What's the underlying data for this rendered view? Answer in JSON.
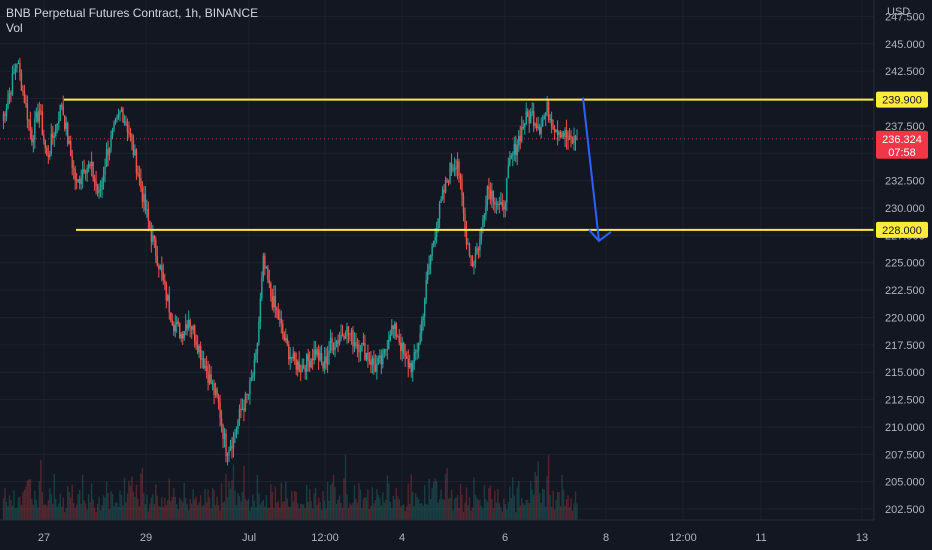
{
  "header": {
    "title": "BNB Perpetual Futures Contract, 1h, BINANCE",
    "subtitle": "Vol"
  },
  "axis": {
    "currency": "USD"
  },
  "levels": [
    {
      "value": 239.9,
      "label": "239.900"
    },
    {
      "value": 228.0,
      "label": "228.000"
    }
  ],
  "current_price": {
    "value": 236.324,
    "label": "236.324",
    "countdown": "07:58"
  },
  "colors": {
    "background": "#131722",
    "up": "#26a69a",
    "down": "#ef5350",
    "level_line": "#ffeb3b",
    "arrow": "#2962ff",
    "price_tag": "#f23645"
  },
  "chart_data": {
    "type": "candlestick",
    "title": "BNB Perpetual Futures Contract, 1h, BINANCE",
    "ylabel": "USD",
    "ylim": [
      201.5,
      249.0
    ],
    "y_ticks": [
      "202.500",
      "205.000",
      "207.500",
      "210.000",
      "212.500",
      "215.000",
      "217.500",
      "220.000",
      "222.500",
      "225.000",
      "227.500",
      "230.000",
      "232.500",
      "235.000",
      "237.500",
      "240.000",
      "242.500",
      "245.000",
      "247.500"
    ],
    "x_ticks": [
      "27",
      "29",
      "Jul",
      "12:00",
      "4",
      "6",
      "8",
      "12:00",
      "11",
      "13"
    ],
    "horizontal_levels": [
      239.9,
      228.0
    ],
    "projection_arrow": {
      "from": 239.9,
      "to": 227.0
    },
    "series": [
      {
        "name": "price_path",
        "values": [
          238.0,
          240.5,
          243.5,
          240.0,
          236.5,
          239.0,
          234.5,
          237.0,
          239.5,
          235.5,
          232.0,
          234.0,
          233.5,
          231.0,
          235.0,
          237.0,
          239.0,
          237.0,
          234.0,
          230.5,
          227.5,
          225.0,
          222.0,
          219.5,
          218.5,
          220.0,
          218.0,
          216.0,
          214.0,
          212.0,
          208.0,
          209.0,
          211.5,
          213.0,
          216.0,
          225.0,
          222.0,
          220.0,
          217.5,
          216.0,
          215.5,
          216.0,
          217.0,
          215.5,
          217.5,
          218.0,
          219.0,
          218.0,
          217.5,
          216.5,
          215.5,
          216.0,
          219.0,
          218.5,
          216.0,
          215.5,
          218.5,
          224.0,
          228.0,
          231.0,
          233.5,
          234.5,
          228.0,
          225.0,
          227.0,
          232.0,
          231.0,
          229.5,
          234.0,
          236.0,
          238.0,
          238.5,
          237.5,
          239.0,
          237.5,
          237.0,
          236.0,
          236.324
        ]
      }
    ],
    "volume_levels": [
      0.5,
      0.3,
      0.7,
      0.4,
      0.2,
      0.6,
      0.5,
      0.3,
      0.4,
      0.3,
      0.2,
      0.5,
      0.4,
      0.3,
      0.6,
      0.4,
      0.5,
      0.7,
      0.6,
      0.8,
      0.4,
      0.3,
      0.5,
      0.4,
      0.3,
      0.6,
      0.9,
      0.5,
      0.3,
      0.4,
      0.2,
      0.3,
      0.5,
      0.4,
      0.3,
      0.6,
      0.4,
      0.2,
      0.3,
      0.5,
      0.3,
      0.4,
      0.2,
      0.3,
      0.6,
      0.4,
      0.3,
      0.5,
      0.4,
      0.3,
      0.2,
      0.5,
      0.4,
      0.3,
      0.6,
      0.5,
      0.3,
      0.2,
      0.4,
      0.3,
      0.5,
      0.4,
      0.3,
      0.2,
      0.3,
      0.4,
      0.2,
      0.3
    ]
  }
}
